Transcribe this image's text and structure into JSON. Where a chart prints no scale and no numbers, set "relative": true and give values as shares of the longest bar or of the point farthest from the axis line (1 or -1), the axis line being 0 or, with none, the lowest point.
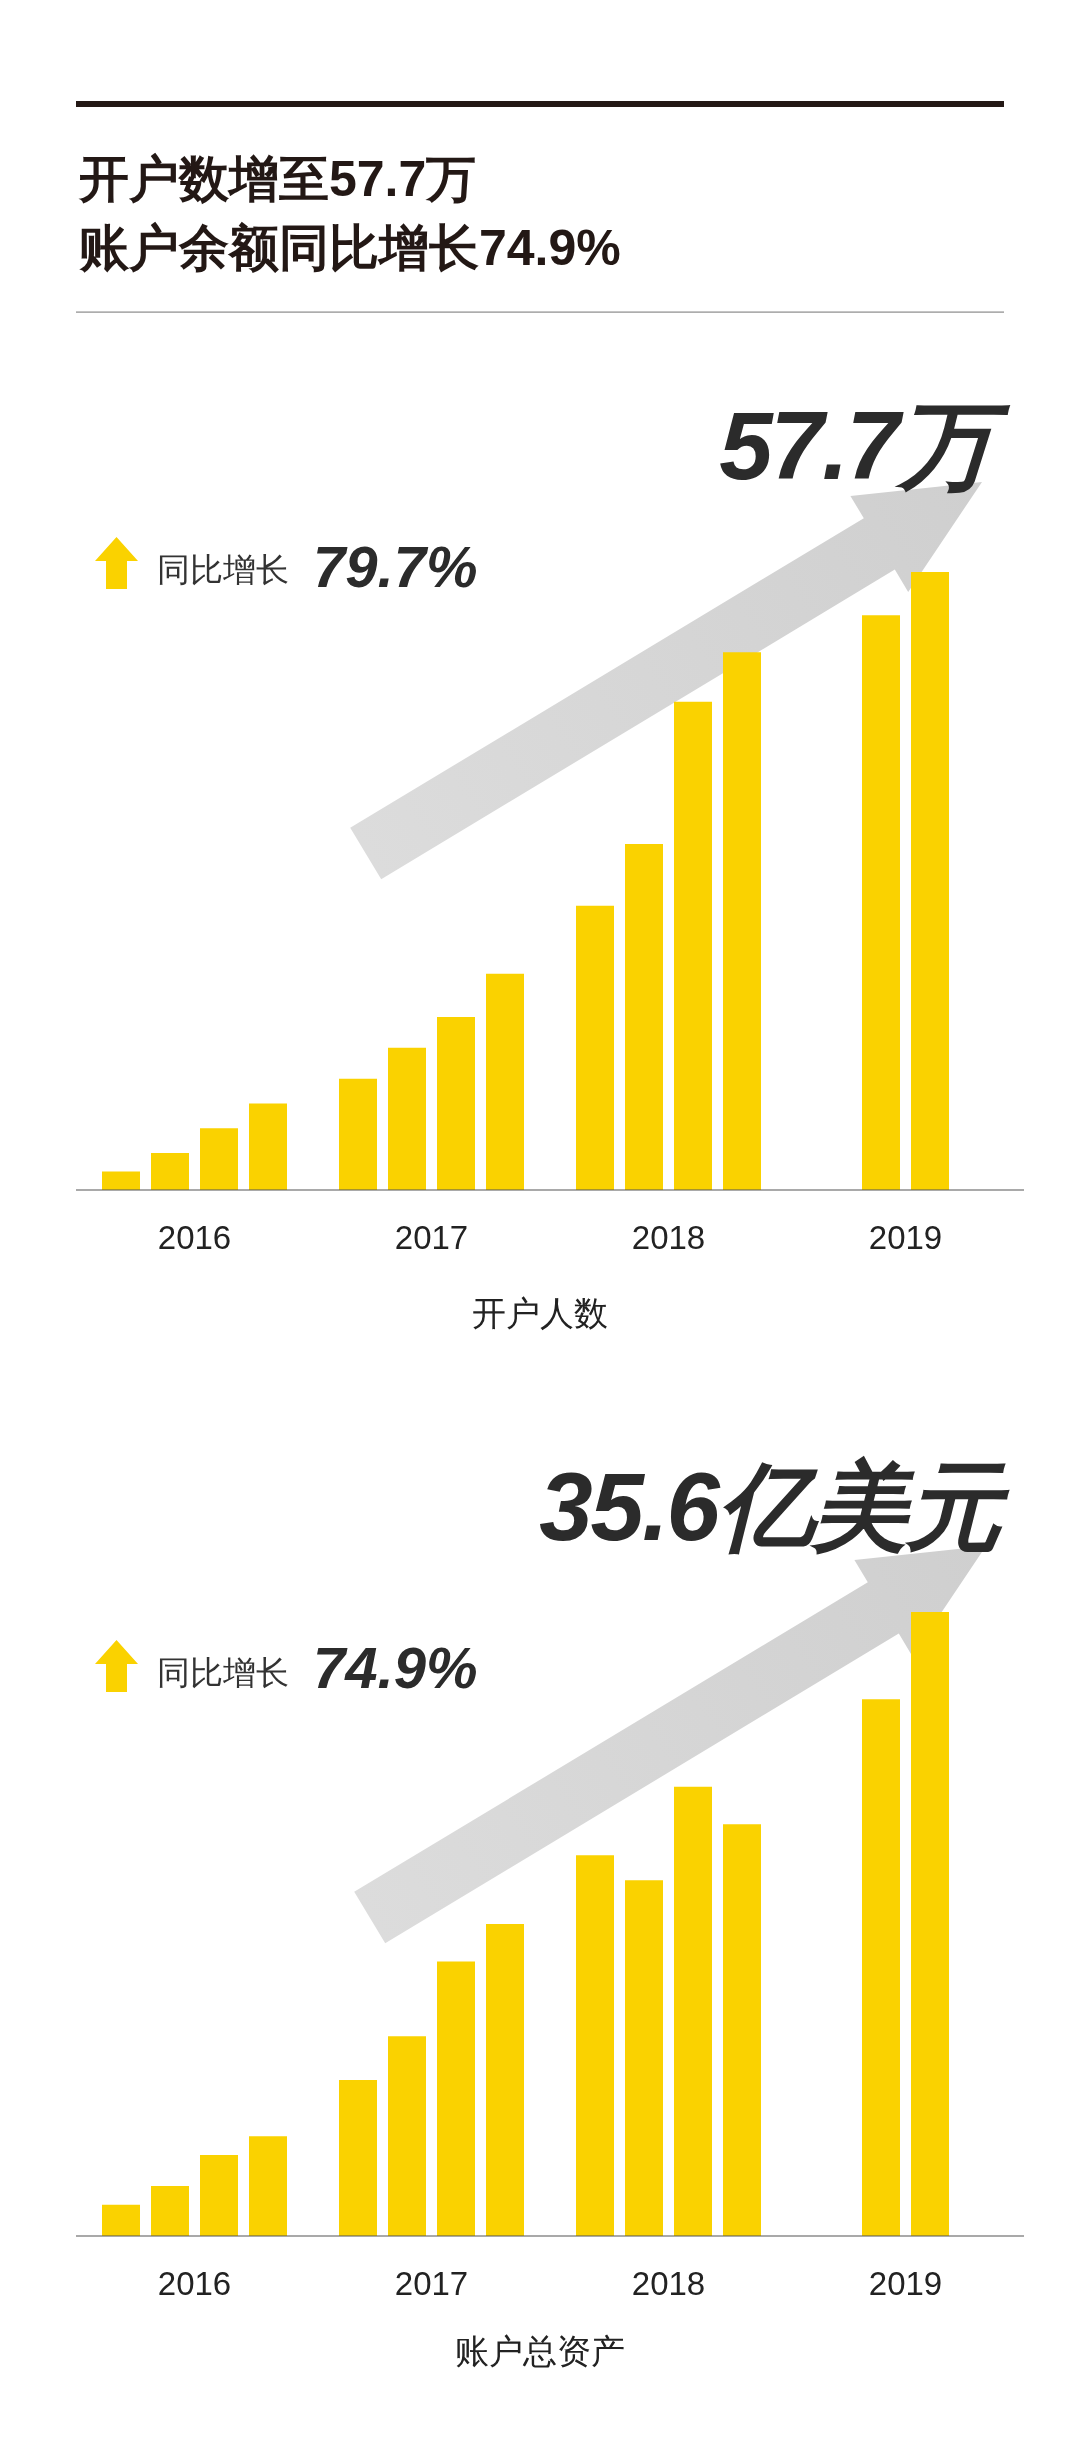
{
  "chart_data": [
    {
      "type": "bar",
      "title": "开户数增至57.7万",
      "subtitle": "账户余额同比增长74.9%",
      "xlabel": "开户人数",
      "categories": [
        "2016",
        "2017",
        "2018",
        "2019"
      ],
      "relative": true,
      "series": [
        {
          "color": "#fad200",
          "values": [
            0.03,
            0.18,
            0.46,
            null
          ]
        },
        {
          "color": "#fad200",
          "values": [
            0.06,
            0.23,
            0.56,
            0.93
          ]
        },
        {
          "color": "#fad200",
          "values": [
            0.1,
            0.28,
            0.79,
            1
          ]
        },
        {
          "color": "#fad200",
          "values": [
            0.14,
            0.35,
            0.87,
            null
          ]
        }
      ],
      "annotations": [
        "57.7万",
        "同比增长",
        "79.7%"
      ]
    },
    {
      "type": "bar",
      "xlabel": "账户总资产",
      "categories": [
        "2016",
        "2017",
        "2018",
        "2019"
      ],
      "relative": true,
      "series": [
        {
          "color": "#fad200",
          "values": [
            0.05,
            0.25,
            0.61,
            null
          ]
        },
        {
          "color": "#fad200",
          "values": [
            0.08,
            0.32,
            0.57,
            0.86
          ]
        },
        {
          "color": "#fad200",
          "values": [
            0.13,
            0.44,
            0.72,
            1
          ]
        },
        {
          "color": "#fad200",
          "values": [
            0.16,
            0.5,
            0.66,
            null
          ]
        }
      ],
      "annotations": [
        "35.6亿美元",
        "同比增长",
        "74.9%"
      ]
    }
  ]
}
